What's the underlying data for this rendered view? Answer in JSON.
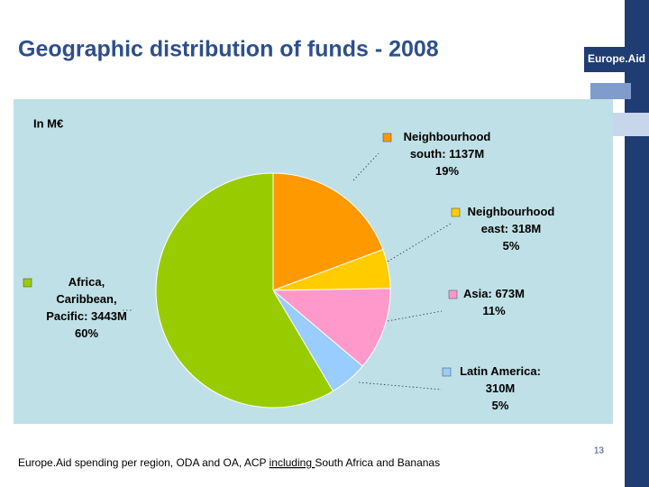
{
  "chart_data": {
    "type": "pie",
    "title": "Geographic distribution of funds - 2008",
    "brand": "Europe.Aid",
    "unit_note": "In M€",
    "categories": [
      "Neighbourhood south:",
      "Neighbourhood east:",
      "Asia:",
      "Latin America:",
      "Africa, Caribbean, Pacific:"
    ],
    "values": [
      1137,
      318,
      673,
      310,
      3443
    ],
    "value_labels": [
      "1137M",
      "318M",
      "673M",
      "310M",
      "3443M"
    ],
    "percentages": [
      19,
      5,
      11,
      5,
      60
    ],
    "percentage_labels": [
      "19%",
      "5%",
      "11%",
      "5%",
      "60%"
    ],
    "colors": [
      "#ff9900",
      "#ffcc00",
      "#ff99cc",
      "#99ccff",
      "#99cc00"
    ],
    "footnote": [
      "Europe.Aid spending per region, ODA and OA, ACP ",
      "including ",
      "South Africa and Bananas"
    ],
    "page_number": "13"
  }
}
